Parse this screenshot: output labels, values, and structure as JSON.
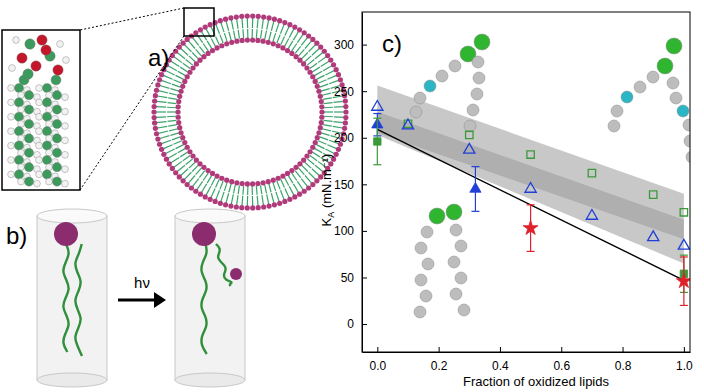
{
  "panels": {
    "a": "a)",
    "b": "b)",
    "c": "c)",
    "photon": "hν"
  },
  "chart_data": {
    "type": "scatter",
    "xlabel": "Fraction of oxidized lipids",
    "ylabel": "KA (mN.m⁻¹)",
    "xlim": [
      -0.05,
      1.02
    ],
    "ylim": [
      -30,
      335
    ],
    "xticks": [
      {
        "value": 0,
        "label": "0.0"
      },
      {
        "value": 0.2,
        "label": "0.2"
      },
      {
        "value": 0.4,
        "label": "0.4"
      },
      {
        "value": 0.6,
        "label": "0.6"
      },
      {
        "value": 0.8,
        "label": "0.8"
      },
      {
        "value": 1,
        "label": "1.0"
      }
    ],
    "yticks": [
      0,
      50,
      100,
      150,
      200,
      250,
      300
    ],
    "series": [
      {
        "type": "band",
        "color": "#9a9a9a",
        "x": [
          0,
          1
        ],
        "lower": [
          205,
          91
        ],
        "upper": [
          256,
          140
        ]
      },
      {
        "type": "band",
        "color": "#9a9a9a",
        "x": [
          0,
          1
        ],
        "lower": [
          203,
          65
        ],
        "upper": [
          228,
          112
        ]
      },
      {
        "type": "line",
        "color": "#000000",
        "x": [
          0,
          1
        ],
        "values": [
          209,
          47
        ]
      },
      {
        "type": "scatter",
        "color": "#3a9a3a",
        "marker": "open-square",
        "x": [
          0.1,
          0.3,
          0.5,
          0.7,
          0.9,
          1.0
        ],
        "values": [
          215,
          203,
          182,
          162,
          139,
          120
        ]
      },
      {
        "type": "scatter",
        "color": "#1f3fd8",
        "marker": "open-triangle",
        "x": [
          0,
          0.1,
          0.3,
          0.5,
          0.7,
          0.9,
          1.0
        ],
        "values": [
          233,
          213,
          187,
          145,
          116,
          93,
          84
        ]
      },
      {
        "type": "scatter",
        "color": "#1f3fd8",
        "marker": "triangle",
        "x": [
          0,
          0.32
        ],
        "values": [
          214,
          145
        ],
        "errors": [
          12,
          24
        ]
      },
      {
        "type": "scatter",
        "color": "#3a9a3a",
        "marker": "square",
        "x": [
          0,
          1
        ],
        "values": [
          196,
          54
        ],
        "errors": [
          25,
          20
        ]
      },
      {
        "type": "scatter",
        "color": "#e0202a",
        "marker": "star",
        "x": [
          0.5,
          1
        ],
        "values": [
          103,
          46
        ],
        "errors": [
          25,
          26
        ]
      }
    ]
  }
}
